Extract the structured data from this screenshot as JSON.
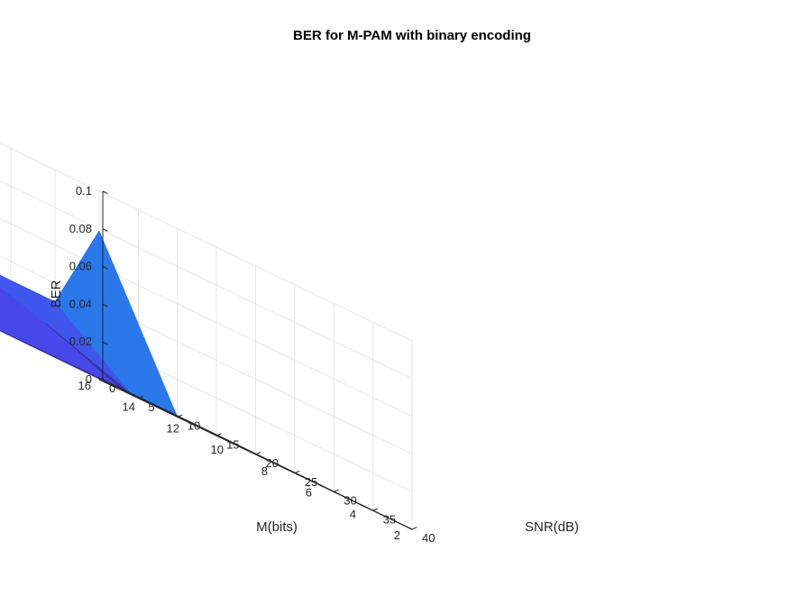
{
  "chart_data": {
    "type": "surface",
    "title": "BER for M-PAM with binary encoding",
    "xlabel": "SNR(dB)",
    "ylabel": "M(bits)",
    "zlabel": "BER",
    "x_ticks": [
      "0",
      "5",
      "10",
      "15",
      "20",
      "25",
      "30",
      "35",
      "40"
    ],
    "y_ticks": [
      "2",
      "4",
      "6",
      "8",
      "10",
      "12",
      "14",
      "16"
    ],
    "z_ticks": [
      "0",
      "0.02",
      "0.04",
      "0.06",
      "0.08",
      "0.1"
    ],
    "xlim": [
      0,
      40
    ],
    "ylim": [
      2,
      16
    ],
    "zlim": [
      0,
      0.1
    ],
    "grid": "on",
    "colormap": "parula",
    "snr_db": [
      0,
      10,
      20,
      30,
      40
    ],
    "m_bits": [
      2,
      4,
      8,
      16
    ],
    "ber": [
      [
        0.079,
        0.0,
        0.0,
        0.0,
        0.0
      ],
      [
        0.03,
        0.0,
        0.0,
        0.0,
        0.0
      ],
      [
        0.03,
        0.016,
        0.0,
        0.0,
        0.0
      ],
      [
        0.045,
        0.045,
        0.0,
        0.0,
        0.0
      ]
    ]
  }
}
